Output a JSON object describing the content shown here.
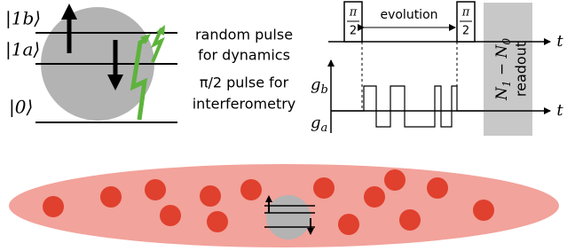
{
  "levels": {
    "upper_b": "|1b⟩",
    "upper_a": "|1a⟩",
    "ground": "|0⟩"
  },
  "captions": [
    "random pulse",
    "for dynamics",
    "π/2 pulse for",
    "interferometry"
  ],
  "sequence": {
    "pulses": [
      {
        "num": "π",
        "den": "2"
      },
      {
        "num": "π",
        "den": "2"
      }
    ],
    "evolution": "evolution",
    "time_axis": [
      "t",
      "t"
    ],
    "g_b": [
      "g",
      "b"
    ],
    "g_a": [
      "g",
      "a"
    ],
    "readout_signal": [
      "N",
      "1",
      " − N",
      "0"
    ],
    "readout": "readout"
  }
}
